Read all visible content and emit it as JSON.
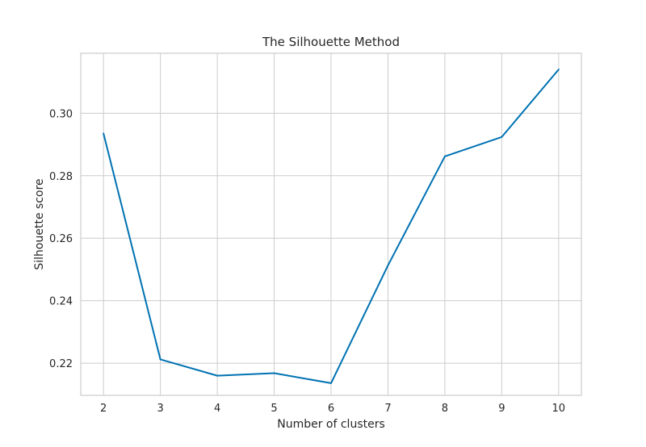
{
  "chart_data": {
    "type": "line",
    "title": "The Silhouette Method",
    "xlabel": "Number of clusters",
    "ylabel": "Silhouette score",
    "x": [
      2,
      3,
      4,
      5,
      6,
      7,
      8,
      9,
      10
    ],
    "series": [
      {
        "values": [
          0.2935,
          0.2212,
          0.216,
          0.2168,
          0.2136,
          0.2513,
          0.2862,
          0.2924,
          0.314
        ],
        "color": "#0072b2"
      }
    ],
    "xlim": [
      1.6,
      10.4
    ],
    "ylim": [
      0.2097,
      0.3192
    ],
    "xticks": [
      2,
      3,
      4,
      5,
      6,
      7,
      8,
      9,
      10
    ],
    "yticks": [
      0.22,
      0.24,
      0.26,
      0.28,
      0.3
    ],
    "ytick_labels": [
      "0.22",
      "0.24",
      "0.26",
      "0.28",
      "0.30"
    ],
    "grid": true,
    "legend": "none"
  }
}
